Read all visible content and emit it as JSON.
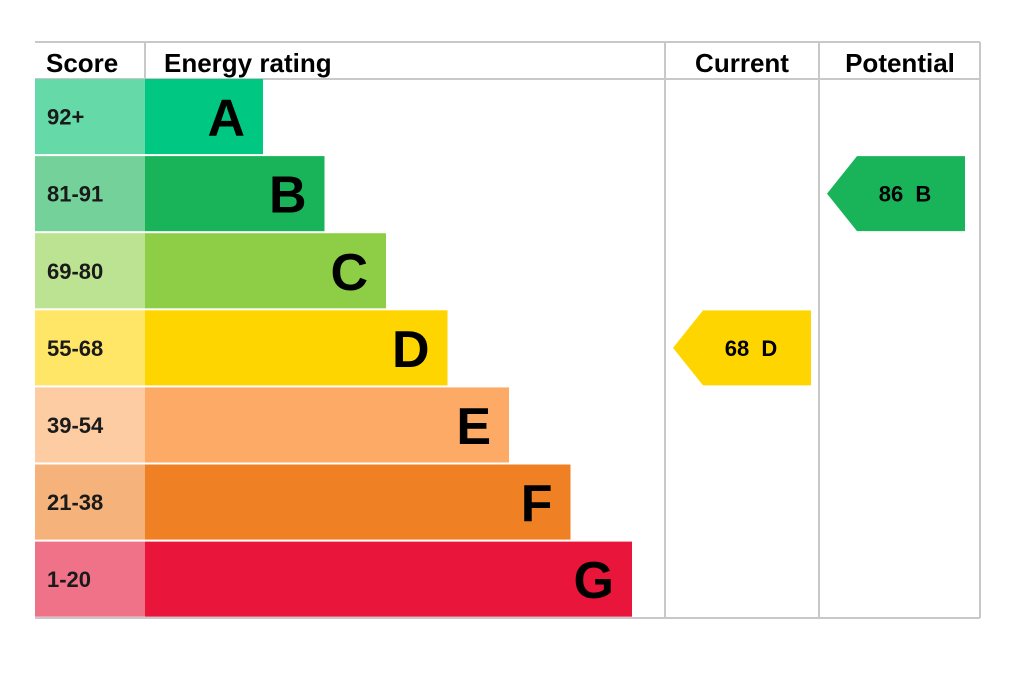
{
  "chart_data": {
    "type": "table",
    "headers": {
      "score": "Score",
      "rating": "Energy rating",
      "current": "Current",
      "potential": "Potential"
    },
    "bands": [
      {
        "letter": "A",
        "range": "92+",
        "color": "#00c781",
        "score_bg": "#66d9a8"
      },
      {
        "letter": "B",
        "range": "81-91",
        "color": "#19b459",
        "score_bg": "#74d19a"
      },
      {
        "letter": "C",
        "range": "69-80",
        "color": "#8dce46",
        "score_bg": "#bbe391"
      },
      {
        "letter": "D",
        "range": "55-68",
        "color": "#ffd500",
        "score_bg": "#ffe666"
      },
      {
        "letter": "E",
        "range": "39-54",
        "color": "#fcaa65",
        "score_bg": "#fdcca3"
      },
      {
        "letter": "F",
        "range": "21-38",
        "color": "#ef8023",
        "score_bg": "#f5b27b"
      },
      {
        "letter": "G",
        "range": "1-20",
        "color": "#e9153b",
        "score_bg": "#f07289"
      }
    ],
    "current": {
      "value": 68,
      "band": "D",
      "label": "68  D",
      "color": "#ffd500"
    },
    "potential": {
      "value": 86,
      "band": "B",
      "label": "86  B",
      "color": "#19b459"
    }
  }
}
